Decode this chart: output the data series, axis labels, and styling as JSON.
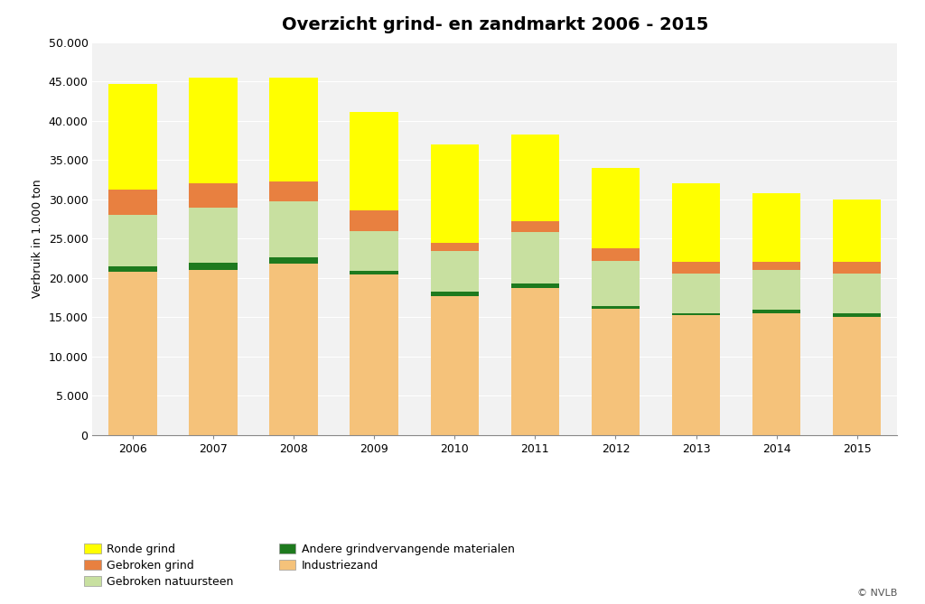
{
  "title": "Overzicht grind- en zandmarkt 2006 - 2015",
  "years": [
    2006,
    2007,
    2008,
    2009,
    2010,
    2011,
    2012,
    2013,
    2014,
    2015
  ],
  "ylabel": "Verbruik in 1.000 ton",
  "ylim": [
    0,
    50000
  ],
  "yticks": [
    0,
    5000,
    10000,
    15000,
    20000,
    25000,
    30000,
    35000,
    40000,
    45000,
    50000
  ],
  "ytick_labels": [
    "0",
    "5.000",
    "10.000",
    "15.000",
    "20.000",
    "25.000",
    "30.000",
    "35.000",
    "40.000",
    "45.000",
    "50.000"
  ],
  "series": {
    "Industriezand": [
      20800,
      21000,
      21800,
      20400,
      17700,
      18700,
      16100,
      15200,
      15500,
      15000
    ],
    "Andere grindvervangende materialen": [
      700,
      900,
      800,
      500,
      500,
      600,
      300,
      300,
      500,
      500
    ],
    "Gebroken natuursteen": [
      6500,
      7000,
      7100,
      5000,
      5200,
      6500,
      5800,
      5000,
      5000,
      5000
    ],
    "Gebroken grind": [
      3200,
      3100,
      2600,
      2700,
      1100,
      1400,
      1600,
      1500,
      1000,
      1500
    ],
    "Ronde grind": [
      13500,
      13500,
      13200,
      12500,
      12500,
      11000,
      10200,
      10000,
      8800,
      8000
    ]
  },
  "colors": {
    "Industriezand": "#F5C27A",
    "Andere grindvervangende materialen": "#1E7A1E",
    "Gebroken natuursteen": "#C8E0A0",
    "Gebroken grind": "#E88040",
    "Ronde grind": "#FFFF00"
  },
  "series_order": [
    "Industriezand",
    "Andere grindvervangende materialen",
    "Gebroken natuursteen",
    "Gebroken grind",
    "Ronde grind"
  ],
  "legend_reorder": [
    "Ronde grind",
    "Gebroken grind",
    "Gebroken natuursteen",
    "Andere grindvervangende materialen",
    "Industriezand"
  ],
  "copyright": "© NVLB",
  "background_color": "#FFFFFF",
  "plot_bg_color": "#F2F2F2",
  "grid_color": "#FFFFFF",
  "title_fontsize": 14,
  "label_fontsize": 9,
  "tick_fontsize": 9,
  "bar_width": 0.6
}
